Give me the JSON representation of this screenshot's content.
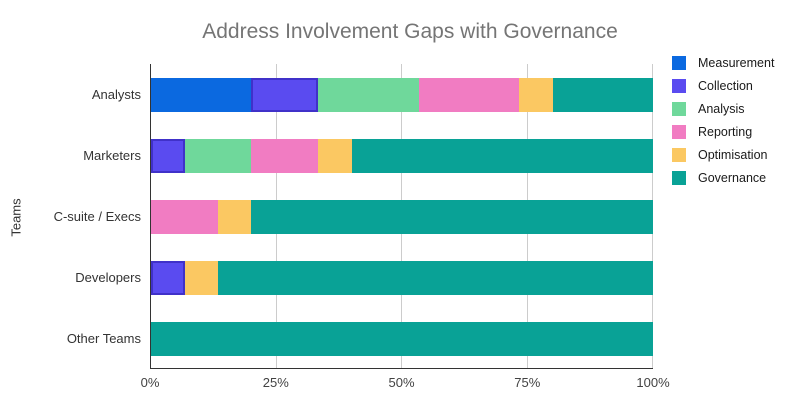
{
  "chart_data": {
    "type": "bar",
    "orientation": "horizontal",
    "stacked": true,
    "title": "Address Involvement Gaps with Governance",
    "xlabel": "",
    "ylabel": "Teams",
    "categories": [
      "Analysts",
      "Marketers",
      "C-suite / Execs",
      "Developers",
      "Other Teams"
    ],
    "x_ticks": [
      {
        "label": "0%",
        "value": 0
      },
      {
        "label": "25%",
        "value": 25
      },
      {
        "label": "50%",
        "value": 50
      },
      {
        "label": "75%",
        "value": 75
      },
      {
        "label": "100%",
        "value": 100
      }
    ],
    "xlim": [
      0,
      100
    ],
    "grid": true,
    "legend_position": "right",
    "series": [
      {
        "name": "Measurement",
        "color": "#0B69E0",
        "values": [
          20,
          0,
          0,
          0,
          0
        ]
      },
      {
        "name": "Collection",
        "color": "#5A4BF0",
        "border_color": "#4031C9",
        "values": [
          13.3,
          6.7,
          0,
          6.7,
          0
        ]
      },
      {
        "name": "Analysis",
        "color": "#6FD89B",
        "values": [
          20,
          13.3,
          0,
          0,
          0
        ]
      },
      {
        "name": "Reporting",
        "color": "#F17CC2",
        "values": [
          20,
          13.3,
          13.3,
          0,
          0
        ]
      },
      {
        "name": "Optimisation",
        "color": "#FBC862",
        "values": [
          6.7,
          6.7,
          6.7,
          6.7,
          0
        ]
      },
      {
        "name": "Governance",
        "color": "#09A296",
        "values": [
          20,
          60,
          80,
          86.6,
          100
        ]
      }
    ]
  }
}
